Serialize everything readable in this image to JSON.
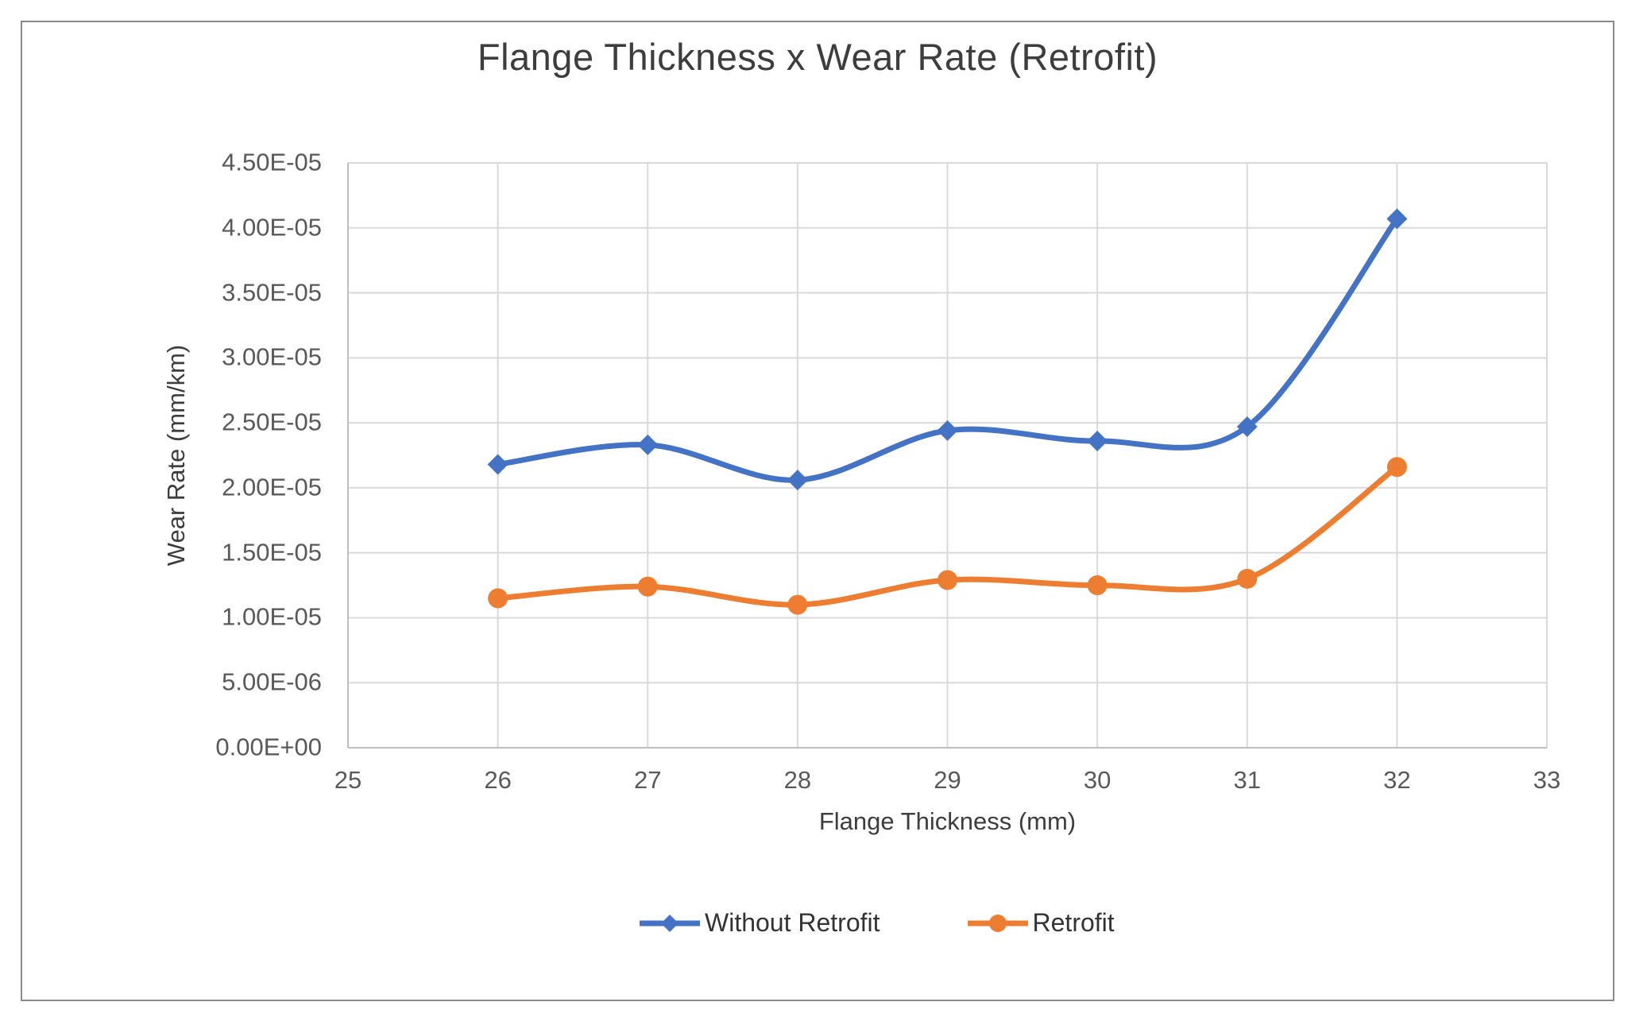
{
  "chart_data": {
    "type": "line",
    "title": "Flange Thickness x Wear Rate (Retrofit)",
    "xlabel": "Flange Thickness (mm)",
    "ylabel": "Wear Rate (mm/km)",
    "xlim": [
      25,
      33
    ],
    "ylim": [
      0,
      4.5e-05
    ],
    "grid": true,
    "legend_position": "bottom-center",
    "x_ticks": [
      25,
      26,
      27,
      28,
      29,
      30,
      31,
      32,
      33
    ],
    "x_tick_labels": [
      "25",
      "26",
      "27",
      "28",
      "29",
      "30",
      "31",
      "32",
      "33"
    ],
    "y_ticks": [
      0,
      5e-06,
      1e-05,
      1.5e-05,
      2e-05,
      2.5e-05,
      3e-05,
      3.5e-05,
      4e-05,
      4.5e-05
    ],
    "y_tick_labels": [
      "0.00E+00",
      "5.00E-06",
      "1.00E-05",
      "1.50E-05",
      "2.00E-05",
      "2.50E-05",
      "3.00E-05",
      "3.50E-05",
      "4.00E-05",
      "4.50E-05"
    ],
    "x": [
      26,
      27,
      28,
      29,
      30,
      31,
      32
    ],
    "series": [
      {
        "name": "Without Retrofit",
        "color": "#4472C4",
        "marker": "diamond",
        "smooth": true,
        "values": [
          2.18e-05,
          2.33e-05,
          2.06e-05,
          2.44e-05,
          2.36e-05,
          2.47e-05,
          4.07e-05
        ]
      },
      {
        "name": "Retrofit",
        "color": "#ED7D31",
        "marker": "circle",
        "smooth": true,
        "values": [
          1.15e-05,
          1.24e-05,
          1.1e-05,
          1.29e-05,
          1.25e-05,
          1.3e-05,
          2.16e-05
        ]
      }
    ]
  },
  "styles": {
    "background": "#FFFFFF",
    "border_color": "#8A8A8A",
    "gridline_color": "#D9D9D9",
    "axis_line_color": "#BFBFBF",
    "tick_label_color": "#595959",
    "title_color": "#3D3D3D",
    "legend_text_color": "#333333"
  }
}
